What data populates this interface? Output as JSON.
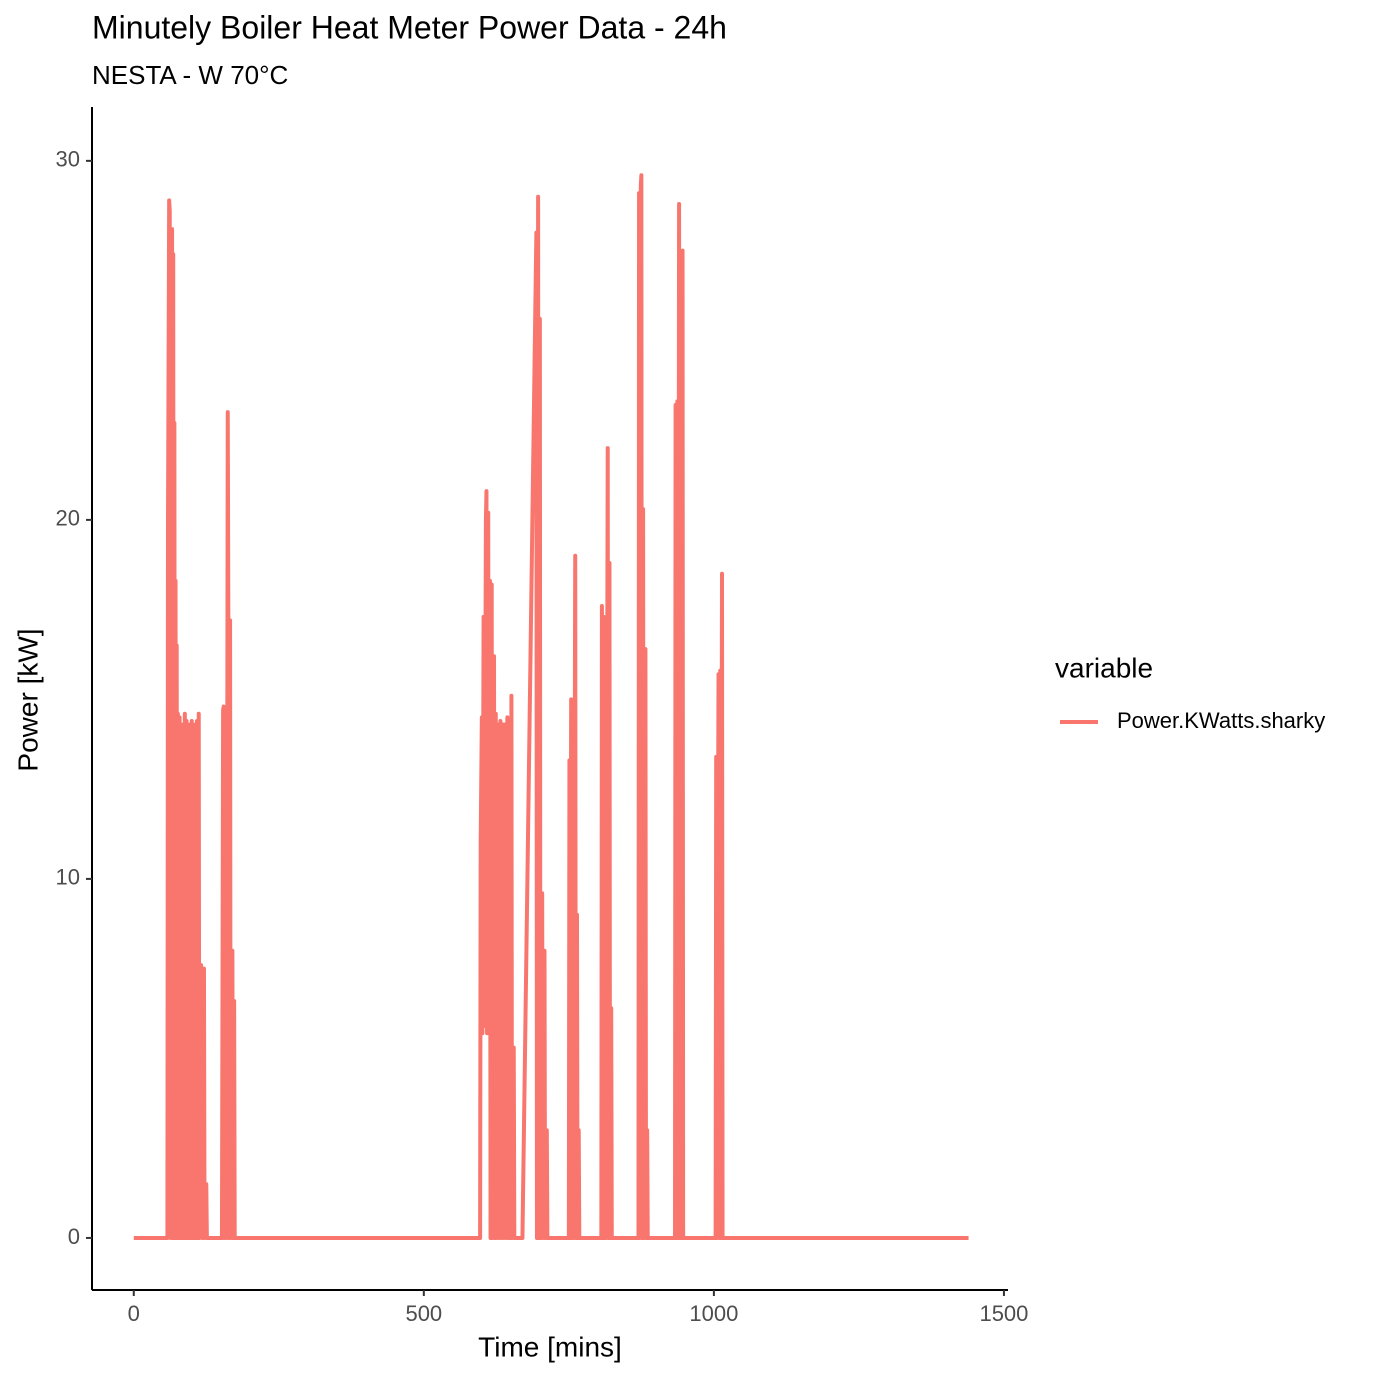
{
  "chart_data": {
    "type": "line",
    "title": "Minutely Boiler Heat Meter Power Data - 24h",
    "subtitle": "NESTA - W 70°C",
    "x_label": "Time [mins]",
    "y_label": "Power [kW]",
    "legend_title": "variable",
    "legend_position": "right",
    "xlim": [
      -72,
      1507
    ],
    "ylim": [
      -1.45,
      31.5
    ],
    "xticks": [
      0,
      500,
      1000,
      1500
    ],
    "yticks": [
      0,
      10,
      20,
      30
    ],
    "grid": false,
    "x": [
      0,
      58,
      59,
      61,
      62,
      63,
      64,
      66,
      67,
      68,
      69,
      70,
      71,
      72,
      73,
      74,
      75,
      76,
      77,
      79,
      80,
      82,
      83,
      85,
      86,
      88,
      89,
      91,
      92,
      94,
      95,
      97,
      98,
      100,
      101,
      103,
      104,
      106,
      107,
      109,
      110,
      112,
      113,
      116,
      118,
      121,
      122,
      125,
      126,
      152,
      154,
      155,
      156,
      159,
      160,
      162,
      163,
      164,
      166,
      167,
      170,
      171,
      173,
      174,
      597,
      598,
      600,
      601,
      603,
      604,
      607,
      608,
      609,
      611,
      612,
      614,
      615,
      617,
      618,
      621,
      622,
      624,
      625,
      628,
      629,
      632,
      633,
      636,
      637,
      640,
      641,
      644,
      645,
      648,
      649,
      651,
      652,
      655,
      656,
      670,
      694,
      695,
      697,
      698,
      700,
      701,
      704,
      705,
      708,
      709,
      712,
      713,
      750,
      751,
      752,
      754,
      755,
      757,
      758,
      761,
      762,
      764,
      765,
      767,
      768,
      806,
      807,
      808,
      810,
      811,
      813,
      814,
      817,
      818,
      820,
      821,
      823,
      824,
      870,
      871,
      872,
      874,
      875,
      876,
      878,
      879,
      882,
      883,
      885,
      886,
      933,
      934,
      935,
      937,
      938,
      940,
      941,
      943,
      944,
      946,
      947,
      1003,
      1004,
      1005,
      1008,
      1009,
      1011,
      1012,
      1014,
      1015,
      1439
    ],
    "series": [
      {
        "name": "Power.KWatts.sharky",
        "color": "#F8766D",
        "values": [
          0,
          0,
          19.8,
          28.9,
          28.6,
          0,
          27.4,
          28.1,
          0,
          27.4,
          0,
          22.7,
          0,
          18.3,
          0,
          16.5,
          0,
          14.6,
          0,
          14.5,
          0,
          14.2,
          0,
          14.3,
          0,
          14.6,
          0,
          14.4,
          0,
          14.2,
          0,
          14.3,
          0,
          14.4,
          0,
          14.2,
          0,
          14.3,
          0,
          14.4,
          0,
          14.6,
          0,
          7.6,
          0,
          7.5,
          0,
          1.5,
          0,
          0,
          14.7,
          14.8,
          0,
          14.5,
          0,
          23,
          17.4,
          0,
          17.2,
          0,
          8,
          0,
          6.6,
          0,
          0,
          11,
          14.5,
          5.7,
          17.3,
          5.9,
          20,
          20.8,
          5.7,
          20.2,
          6,
          18.3,
          0,
          18.2,
          0,
          16.2,
          0,
          14.6,
          0,
          14.3,
          0,
          14.4,
          0,
          14.3,
          0,
          14.3,
          0,
          14.5,
          0,
          14.4,
          0,
          15.1,
          0,
          5.3,
          0,
          0,
          28,
          0,
          29,
          0,
          25.6,
          0,
          9.6,
          0,
          8,
          0,
          3,
          0,
          0,
          13.3,
          0,
          15,
          0,
          14.8,
          0,
          19,
          0,
          9,
          0,
          3,
          0,
          0,
          17.6,
          0,
          17.3,
          0,
          15.3,
          0,
          22,
          0,
          18.8,
          0,
          6.4,
          0,
          0,
          29.1,
          0,
          29.3,
          29.6,
          0,
          20.3,
          0,
          16.4,
          0,
          3,
          0,
          0,
          23.2,
          0,
          23.3,
          0,
          28.8,
          0,
          27.3,
          0,
          27.5,
          0,
          0,
          13.4,
          0,
          15.7,
          0,
          15.8,
          0,
          18.5,
          0,
          0
        ]
      }
    ]
  }
}
